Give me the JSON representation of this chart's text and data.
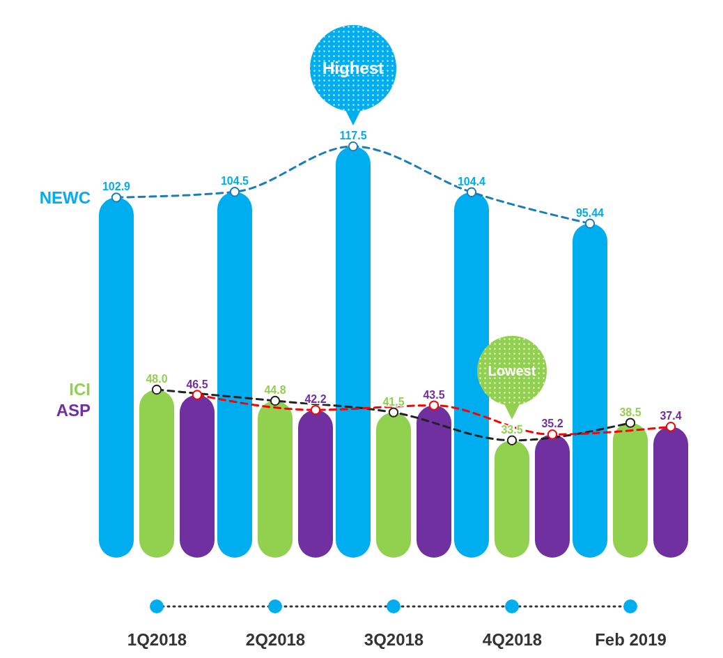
{
  "chart_data": {
    "type": "bar",
    "categories": [
      "1Q2018",
      "2Q2018",
      "3Q2018",
      "4Q2018",
      "Feb 2019"
    ],
    "series": [
      {
        "name": "NEWC",
        "color": "#00aeef",
        "values": [
          102.9,
          104.5,
          117.5,
          104.4,
          95.44
        ],
        "value_labels": [
          "102.9",
          "104.5",
          "117.5",
          "104.4",
          "95.44"
        ]
      },
      {
        "name": "ICI",
        "color": "#92d050",
        "values": [
          48.0,
          44.8,
          41.5,
          33.5,
          38.5
        ],
        "value_labels": [
          "48.0",
          "44.8",
          "41.5",
          "33.5",
          "38.5"
        ]
      },
      {
        "name": "ASP",
        "color": "#7030a0",
        "values": [
          46.5,
          42.2,
          43.5,
          35.2,
          37.4
        ],
        "value_labels": [
          "46.5",
          "42.2",
          "43.5",
          "35.2",
          "37.4"
        ]
      },
      {
        "type": "line",
        "color": "#1b7db5",
        "values": [
          102.9,
          104.5,
          117.5,
          104.4,
          95.44
        ]
      },
      {
        "type": "line",
        "color": "#222222",
        "values": [
          48.0,
          44.8,
          41.5,
          33.5,
          38.5
        ]
      },
      {
        "type": "line",
        "color": "#ff0000",
        "values": [
          46.5,
          42.2,
          43.5,
          35.2,
          37.4
        ]
      }
    ],
    "line_style": "dashed",
    "marker": "circle",
    "annotations": [
      "Highest",
      "Lowest"
    ]
  }
}
